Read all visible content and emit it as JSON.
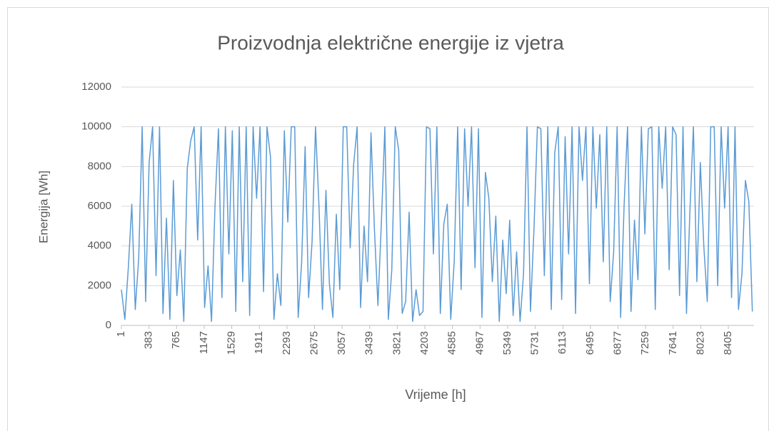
{
  "chart_data": {
    "type": "line",
    "title": "Proizvodnja električne energije iz vjetra",
    "xlabel": "Vrijeme [h]",
    "ylabel": "Energija [Wh]",
    "xlim": [
      1,
      8760
    ],
    "xticks": [
      1,
      383,
      765,
      1147,
      1529,
      1911,
      2293,
      2675,
      3057,
      3439,
      3821,
      4203,
      4585,
      4967,
      5349,
      5731,
      6113,
      6495,
      6877,
      7259,
      7641,
      8023,
      8405
    ],
    "ylim": [
      0,
      12000
    ],
    "yticks": [
      0,
      2000,
      4000,
      6000,
      8000,
      10000,
      12000
    ],
    "grid": true,
    "series": [
      {
        "name": "Energija",
        "color": "#5b9bd5",
        "x": [
          1,
          49,
          97,
          145,
          193,
          241,
          289,
          337,
          385,
          433,
          481,
          529,
          577,
          625,
          673,
          721,
          769,
          817,
          865,
          913,
          961,
          1009,
          1057,
          1105,
          1153,
          1201,
          1249,
          1297,
          1345,
          1393,
          1441,
          1489,
          1537,
          1585,
          1633,
          1681,
          1729,
          1777,
          1825,
          1873,
          1921,
          1969,
          2017,
          2065,
          2113,
          2161,
          2209,
          2257,
          2305,
          2353,
          2401,
          2449,
          2497,
          2545,
          2593,
          2641,
          2689,
          2737,
          2785,
          2833,
          2881,
          2929,
          2977,
          3025,
          3073,
          3121,
          3169,
          3217,
          3265,
          3313,
          3361,
          3409,
          3457,
          3505,
          3553,
          3601,
          3649,
          3697,
          3745,
          3793,
          3841,
          3889,
          3937,
          3985,
          4033,
          4081,
          4129,
          4177,
          4225,
          4273,
          4321,
          4369,
          4417,
          4465,
          4513,
          4561,
          4609,
          4657,
          4705,
          4753,
          4801,
          4849,
          4897,
          4945,
          4993,
          5041,
          5089,
          5137,
          5185,
          5233,
          5281,
          5329,
          5377,
          5425,
          5473,
          5521,
          5569,
          5617,
          5665,
          5713,
          5761,
          5809,
          5857,
          5905,
          5953,
          6001,
          6049,
          6097,
          6145,
          6193,
          6241,
          6289,
          6337,
          6385,
          6433,
          6481,
          6529,
          6577,
          6625,
          6673,
          6721,
          6769,
          6817,
          6865,
          6913,
          6961,
          7009,
          7057,
          7105,
          7153,
          7201,
          7249,
          7297,
          7345,
          7393,
          7441,
          7489,
          7537,
          7585,
          7633,
          7681,
          7729,
          7777,
          7825,
          7873,
          7921,
          7969,
          8017,
          8065,
          8113,
          8161,
          8209,
          8257,
          8305,
          8353,
          8401,
          8449,
          8497,
          8545,
          8593,
          8641,
          8689,
          8737
        ],
        "values": [
          1800,
          300,
          2900,
          6100,
          800,
          3400,
          10000,
          1200,
          8200,
          10000,
          2500,
          10000,
          600,
          5400,
          300,
          7300,
          1500,
          3800,
          200,
          7900,
          9300,
          10000,
          4300,
          10000,
          900,
          3000,
          200,
          6000,
          9900,
          1400,
          10000,
          3600,
          9800,
          700,
          10000,
          2200,
          10000,
          500,
          10000,
          6400,
          10000,
          1700,
          10000,
          8500,
          300,
          2600,
          1000,
          9800,
          5200,
          10000,
          10000,
          400,
          3200,
          9000,
          1400,
          4200,
          10000,
          6000,
          800,
          6800,
          2100,
          400,
          5600,
          1800,
          10000,
          10000,
          3900,
          8100,
          10000,
          900,
          5000,
          2200,
          9700,
          4800,
          1000,
          5200,
          10000,
          300,
          2800,
          10000,
          8800,
          600,
          1200,
          5700,
          200,
          1800,
          500,
          700,
          10000,
          9900,
          3600,
          10000,
          600,
          5100,
          6100,
          300,
          3200,
          10000,
          1800,
          9900,
          6000,
          10000,
          2900,
          9900,
          400,
          7700,
          6400,
          2200,
          5500,
          200,
          4300,
          1600,
          5300,
          500,
          3700,
          200,
          2600,
          10000,
          700,
          4800,
          10000,
          9900,
          2500,
          10000,
          800,
          8700,
          10000,
          1300,
          9500,
          3600,
          10000,
          600,
          10000,
          7300,
          10000,
          2100,
          10000,
          5900,
          9600,
          3200,
          10000,
          1200,
          3700,
          10000,
          400,
          6000,
          10000,
          700,
          5300,
          2300,
          10000,
          4600,
          9900,
          10000,
          800,
          10000,
          6900,
          10000,
          2800,
          10000,
          9600,
          1500,
          10000,
          600,
          5800,
          10000,
          2200,
          8200,
          4000,
          1200,
          10000,
          10000,
          2000,
          10000,
          5900,
          10000,
          1400,
          10000,
          800,
          2600,
          7300,
          6200,
          700
        ]
      }
    ]
  }
}
